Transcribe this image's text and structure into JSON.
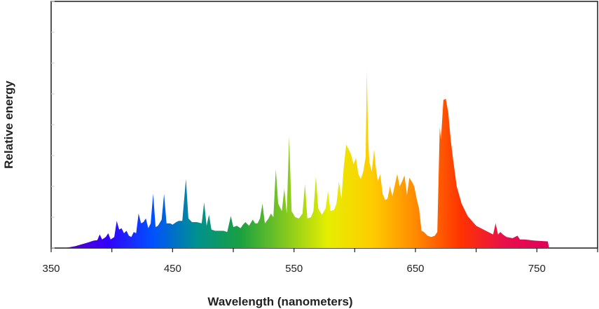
{
  "chart_data": {
    "type": "area",
    "title": "",
    "xlabel": "Wavelength (nanometers)",
    "ylabel": "Relative energy",
    "xlim": [
      350,
      800
    ],
    "ylim": [
      0,
      100
    ],
    "x_ticks": [
      350,
      450,
      550,
      650,
      750
    ],
    "y_tick_labels": false,
    "grid": false,
    "legend": "none",
    "fill": "visible-spectrum gradient (violet to red)",
    "gradient_colors": [
      "#5a00c0",
      "#3300ff",
      "#0050ff",
      "#009090",
      "#1aa040",
      "#80c820",
      "#e6ee00",
      "#ffcc00",
      "#ff8800",
      "#ff3300",
      "#e8104a",
      "#e0005a"
    ],
    "series": [
      {
        "values": [
          [
            360,
            0
          ],
          [
            365,
            0.3
          ],
          [
            370,
            0.8
          ],
          [
            375,
            1.5
          ],
          [
            380,
            2.2
          ],
          [
            385,
            3.0
          ],
          [
            388,
            3.2
          ],
          [
            390,
            5.5
          ],
          [
            392,
            3.5
          ],
          [
            395,
            4.5
          ],
          [
            397,
            6.0
          ],
          [
            399,
            3.5
          ],
          [
            402,
            4.5
          ],
          [
            404,
            11.0
          ],
          [
            406,
            7.5
          ],
          [
            408,
            8.0
          ],
          [
            410,
            6.0
          ],
          [
            412,
            7.0
          ],
          [
            414,
            5.0
          ],
          [
            416,
            4.5
          ],
          [
            418,
            6.5
          ],
          [
            420,
            6.0
          ],
          [
            422,
            14.0
          ],
          [
            424,
            10.0
          ],
          [
            426,
            10.5
          ],
          [
            428,
            12.0
          ],
          [
            430,
            8.0
          ],
          [
            432,
            10.0
          ],
          [
            434,
            22.0
          ],
          [
            436,
            8.5
          ],
          [
            438,
            9.0
          ],
          [
            441,
            11.5
          ],
          [
            443,
            22.0
          ],
          [
            445,
            10.0
          ],
          [
            448,
            10.0
          ],
          [
            450,
            9.5
          ],
          [
            453,
            10.5
          ],
          [
            455,
            11.0
          ],
          [
            458,
            11.0
          ],
          [
            461,
            28.0
          ],
          [
            463,
            12.0
          ],
          [
            466,
            10.5
          ],
          [
            470,
            10.5
          ],
          [
            474,
            10.0
          ],
          [
            476,
            18.5
          ],
          [
            478,
            9.0
          ],
          [
            480,
            13.5
          ],
          [
            482,
            7.5
          ],
          [
            485,
            7.0
          ],
          [
            488,
            7.0
          ],
          [
            492,
            7.0
          ],
          [
            495,
            6.5
          ],
          [
            498,
            13.0
          ],
          [
            500,
            8.5
          ],
          [
            503,
            9.0
          ],
          [
            506,
            8.0
          ],
          [
            508,
            9.5
          ],
          [
            510,
            10.5
          ],
          [
            513,
            9.0
          ],
          [
            516,
            11.5
          ],
          [
            518,
            10.0
          ],
          [
            520,
            10.0
          ],
          [
            522,
            12.0
          ],
          [
            524,
            18.0
          ],
          [
            526,
            10.0
          ],
          [
            529,
            12.0
          ],
          [
            531,
            14.0
          ],
          [
            533,
            12.5
          ],
          [
            535,
            32.0
          ],
          [
            537,
            18.0
          ],
          [
            540,
            15.0
          ],
          [
            542,
            24.0
          ],
          [
            544,
            14.0
          ],
          [
            546,
            45.0
          ],
          [
            548,
            15.0
          ],
          [
            551,
            12.5
          ],
          [
            554,
            12.0
          ],
          [
            557,
            14.0
          ],
          [
            559,
            26.0
          ],
          [
            561,
            12.0
          ],
          [
            564,
            12.5
          ],
          [
            566,
            15.0
          ],
          [
            568,
            29.0
          ],
          [
            570,
            16.0
          ],
          [
            573,
            13.5
          ],
          [
            576,
            16.0
          ],
          [
            578,
            23.0
          ],
          [
            580,
            15.0
          ],
          [
            583,
            15.5
          ],
          [
            585,
            18.0
          ],
          [
            587,
            27.0
          ],
          [
            589,
            20.0
          ],
          [
            591,
            33.0
          ],
          [
            593,
            42.0
          ],
          [
            595,
            40.0
          ],
          [
            597,
            38.0
          ],
          [
            599,
            34.0
          ],
          [
            601,
            36.5
          ],
          [
            603,
            30.0
          ],
          [
            605,
            28.0
          ],
          [
            607,
            31.0
          ],
          [
            609,
            37.0
          ],
          [
            610,
            72.0
          ],
          [
            611,
            45.0
          ],
          [
            612,
            35.0
          ],
          [
            614,
            31.0
          ],
          [
            616,
            40.0
          ],
          [
            617,
            34.0
          ],
          [
            619,
            27.0
          ],
          [
            621,
            30.0
          ],
          [
            623,
            22.0
          ],
          [
            625,
            19.5
          ],
          [
            627,
            20.0
          ],
          [
            629,
            25.0
          ],
          [
            631,
            21.0
          ],
          [
            633,
            25.5
          ],
          [
            635,
            30.0
          ],
          [
            637,
            25.0
          ],
          [
            639,
            27.0
          ],
          [
            641,
            29.5
          ],
          [
            643,
            21.5
          ],
          [
            645,
            28.5
          ],
          [
            647,
            27.0
          ],
          [
            649,
            25.0
          ],
          [
            651,
            20.0
          ],
          [
            653,
            16.0
          ],
          [
            655,
            7.0
          ],
          [
            657,
            6.5
          ],
          [
            660,
            5.0
          ],
          [
            663,
            4.5
          ],
          [
            666,
            5.0
          ],
          [
            668,
            6.5
          ],
          [
            670,
            49.0
          ],
          [
            671,
            44.0
          ],
          [
            673,
            60.0
          ],
          [
            675,
            60.5
          ],
          [
            677,
            55.0
          ],
          [
            679,
            44.0
          ],
          [
            681,
            36.0
          ],
          [
            684,
            25.0
          ],
          [
            688,
            18.0
          ],
          [
            693,
            13.0
          ],
          [
            700,
            9.0
          ],
          [
            708,
            7.0
          ],
          [
            714,
            5.5
          ],
          [
            716,
            10.0
          ],
          [
            718,
            5.5
          ],
          [
            720,
            6.5
          ],
          [
            722,
            5.5
          ],
          [
            725,
            4.5
          ],
          [
            730,
            4.0
          ],
          [
            734,
            5.0
          ],
          [
            736,
            3.5
          ],
          [
            740,
            3.5
          ],
          [
            748,
            3.0
          ],
          [
            755,
            2.8
          ],
          [
            759,
            2.7
          ],
          [
            760,
            0
          ]
        ]
      }
    ]
  }
}
